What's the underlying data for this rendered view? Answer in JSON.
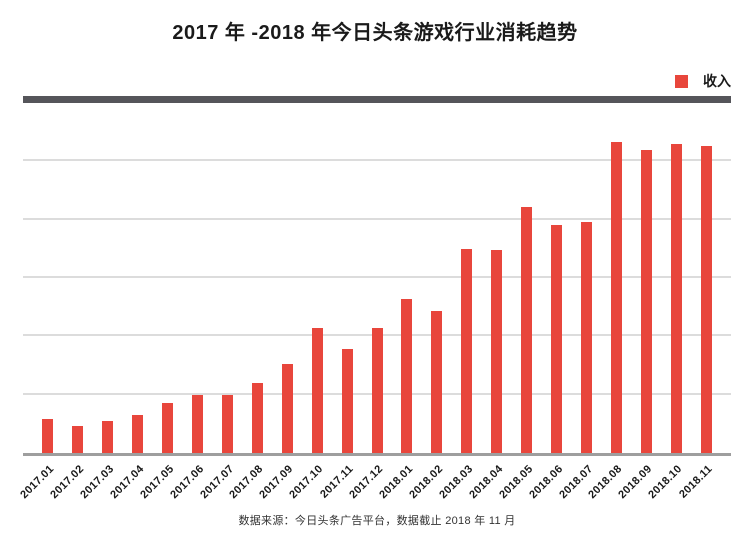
{
  "header": {
    "title": "2017 年 -2018 年今日头条游戏行业消耗趋势"
  },
  "legend": {
    "items": [
      {
        "label": "收入",
        "color": "#e8463c"
      }
    ]
  },
  "chart_data": {
    "type": "bar",
    "title": "2017 年 -2018 年今日头条游戏行业消耗趋势",
    "categories": [
      "2017.01",
      "2017.02",
      "2017.03",
      "2017.04",
      "2017.05",
      "2017.06",
      "2017.07",
      "2017.08",
      "2017.09",
      "2017.10",
      "2017.11",
      "2017.12",
      "2018.01",
      "2018.02",
      "2018.03",
      "2018.04",
      "2018.05",
      "2018.06",
      "2018.07",
      "2018.08",
      "2018.09",
      "2018.10",
      "2018.11"
    ],
    "series": [
      {
        "name": "收入",
        "color": "#e8463c",
        "values": [
          0.58,
          0.46,
          0.55,
          0.65,
          0.86,
          1.0,
          1.0,
          1.2,
          1.53,
          2.14,
          1.78,
          2.14,
          2.64,
          2.44,
          3.5,
          3.48,
          4.22,
          3.91,
          3.96,
          5.33,
          5.2,
          5.3,
          5.26
        ]
      }
    ],
    "xlabel": "",
    "ylabel": "",
    "ylim": [
      0,
      6
    ],
    "y_gridline_interval": 1,
    "y_tick_labels_visible": false,
    "grid": "horizontal",
    "legend_position": "top-right"
  },
  "footer": {
    "source_note": "数据来源：今日头条广告平台，数据截止 2018 年 11 月"
  },
  "style_colors": {
    "bar": "#e8463c",
    "top_accent_bar": "#55555a",
    "gridline": "#dcdcdc",
    "axis_line": "#9e9e9e",
    "title_text": "#1a1a1a",
    "footer_text": "#333333"
  }
}
